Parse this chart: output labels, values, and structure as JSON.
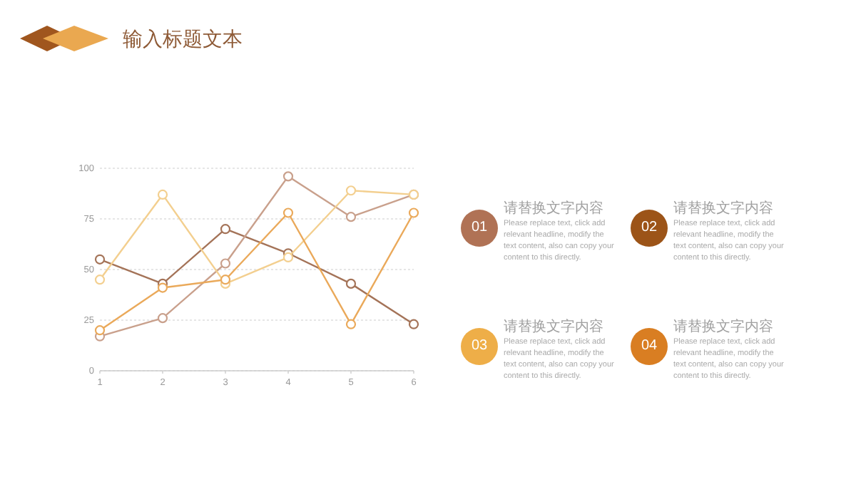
{
  "chart_data": [
    {
      "type": "line",
      "title": "输入标题文本",
      "x": [
        1,
        2,
        3,
        4,
        5,
        6
      ],
      "xlim": [
        1,
        6
      ],
      "xticks": [
        1,
        2,
        3,
        4,
        5,
        6
      ],
      "ylim": [
        0,
        100
      ],
      "yticks": [
        0,
        25,
        50,
        75,
        100
      ],
      "grid": "y",
      "marker": "circle",
      "line_style": "solid",
      "series": [
        {
          "color": "#a47358",
          "values": [
            55,
            43,
            70,
            58,
            43,
            23
          ]
        },
        {
          "color": "#c9a08c",
          "values": [
            17,
            26,
            53,
            96,
            76,
            87
          ]
        },
        {
          "color": "#f3cf8f",
          "values": [
            45,
            87,
            43,
            56,
            89,
            87
          ]
        },
        {
          "color": "#eaa95a",
          "values": [
            20,
            41,
            45,
            78,
            23,
            78
          ]
        }
      ]
    },
    {
      "type": "other",
      "colors": [
        "#b07255",
        "#9c5418",
        "#eeae48",
        "#d97e22"
      ],
      "annotations": [
        "01",
        "请替换文字内容",
        "Please replace text, click add relevant headline, modify the text content, also can copy your content to this directly.",
        "02",
        "请替换文字内容",
        "Please replace text, click add relevant headline, modify the text content, also can copy your content to this directly.",
        "03",
        "请替换文字内容",
        "Please replace text, click add relevant headline, modify the text content, also can copy your content to this directly.",
        "04",
        "请替换文字内容",
        "Please replace text, click add relevant headline, modify the text content, also can copy your content to this directly."
      ]
    }
  ]
}
